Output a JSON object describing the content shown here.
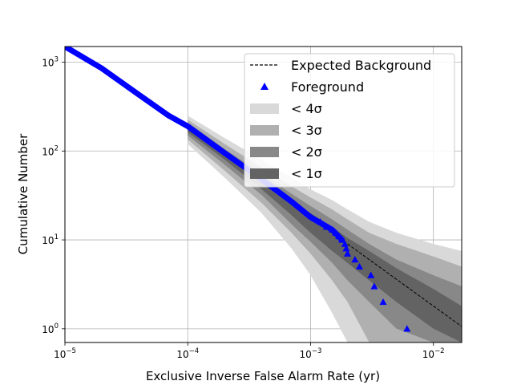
{
  "chart_data": {
    "type": "scatter",
    "xscale": "log",
    "yscale": "log",
    "xlabel": "Exclusive Inverse False Alarm Rate (yr)",
    "ylabel": "Cumulative Number",
    "xlim": [
      1e-05,
      0.017
    ],
    "ylim": [
      0.7,
      1500
    ],
    "grid": true,
    "legend_position": "top-right",
    "x_ticks": [
      {
        "value": 1e-05,
        "base": "10",
        "exp": "−5"
      },
      {
        "value": 0.0001,
        "base": "10",
        "exp": "−4"
      },
      {
        "value": 0.001,
        "base": "10",
        "exp": "−3"
      },
      {
        "value": 0.01,
        "base": "10",
        "exp": "−2"
      }
    ],
    "y_ticks": [
      {
        "value": 1,
        "base": "10",
        "exp": "0"
      },
      {
        "value": 10,
        "base": "10",
        "exp": "1"
      },
      {
        "value": 100,
        "base": "10",
        "exp": "2"
      },
      {
        "value": 1000,
        "base": "10",
        "exp": "3"
      }
    ],
    "legend": [
      {
        "label": "Expected Background",
        "kind": "dashed-line",
        "color": "#000000"
      },
      {
        "label": "Foreground",
        "kind": "triangle",
        "color": "#0000ff"
      },
      {
        "label": "< 4σ",
        "kind": "band",
        "color": "#d9d9d9"
      },
      {
        "label": "< 3σ",
        "kind": "band",
        "color": "#b0b0b0"
      },
      {
        "label": "< 2σ",
        "kind": "band",
        "color": "#888888"
      },
      {
        "label": "< 1σ",
        "kind": "band",
        "color": "#636363"
      }
    ],
    "expected_background": {
      "x": [
        0.0001,
        0.017
      ],
      "y": [
        180,
        1.06
      ]
    },
    "bands": {
      "x": [
        0.0001,
        0.0002,
        0.0004,
        0.0007,
        0.001,
        0.0015,
        0.002,
        0.003,
        0.005,
        0.01,
        0.017
      ],
      "sigma4": {
        "lower": [
          120,
          50,
          20,
          8,
          4,
          1.5,
          0.7,
          0.7,
          0.7,
          0.7,
          0.7
        ],
        "upper": [
          250,
          140,
          80,
          50,
          37,
          28,
          22,
          16,
          12,
          9,
          7.5
        ]
      },
      "sigma3": {
        "lower": [
          135,
          60,
          26,
          12,
          7,
          3.5,
          2,
          0.7,
          0.7,
          0.7,
          0.7
        ],
        "upper": [
          225,
          120,
          65,
          40,
          30,
          22,
          17,
          12,
          9,
          6.5,
          5
        ]
      },
      "sigma2": {
        "lower": [
          150,
          70,
          32,
          15,
          9.5,
          5.5,
          3.5,
          2,
          1,
          0.7,
          0.7
        ],
        "upper": [
          210,
          105,
          56,
          33,
          24,
          17,
          13,
          9,
          6,
          4,
          3
        ]
      },
      "sigma1": {
        "lower": [
          163,
          80,
          37,
          19,
          12,
          7.5,
          5.5,
          3.5,
          2,
          1,
          0.7
        ],
        "upper": [
          198,
          95,
          48,
          28,
          20,
          14,
          10.5,
          7.5,
          4.8,
          2.8,
          1.8
        ]
      }
    },
    "foreground": {
      "curve_x": [
        1e-05,
        2e-05,
        4e-05,
        7e-05,
        0.0001,
        0.0002,
        0.0004,
        0.0007,
        0.001,
        0.0015,
        0.0018
      ],
      "curve_y": [
        1500,
        850,
        430,
        250,
        190,
        95,
        48,
        27,
        18,
        13,
        10
      ],
      "points": [
        {
          "x": 0.0012,
          "y": 16
        },
        {
          "x": 0.00135,
          "y": 14
        },
        {
          "x": 0.0015,
          "y": 13
        },
        {
          "x": 0.0016,
          "y": 12
        },
        {
          "x": 0.0017,
          "y": 11
        },
        {
          "x": 0.0018,
          "y": 10
        },
        {
          "x": 0.0019,
          "y": 9
        },
        {
          "x": 0.00195,
          "y": 8
        },
        {
          "x": 0.002,
          "y": 7
        },
        {
          "x": 0.0023,
          "y": 6
        },
        {
          "x": 0.0025,
          "y": 5
        },
        {
          "x": 0.0031,
          "y": 4
        },
        {
          "x": 0.0033,
          "y": 3
        },
        {
          "x": 0.0039,
          "y": 2
        },
        {
          "x": 0.0061,
          "y": 1
        }
      ]
    }
  }
}
